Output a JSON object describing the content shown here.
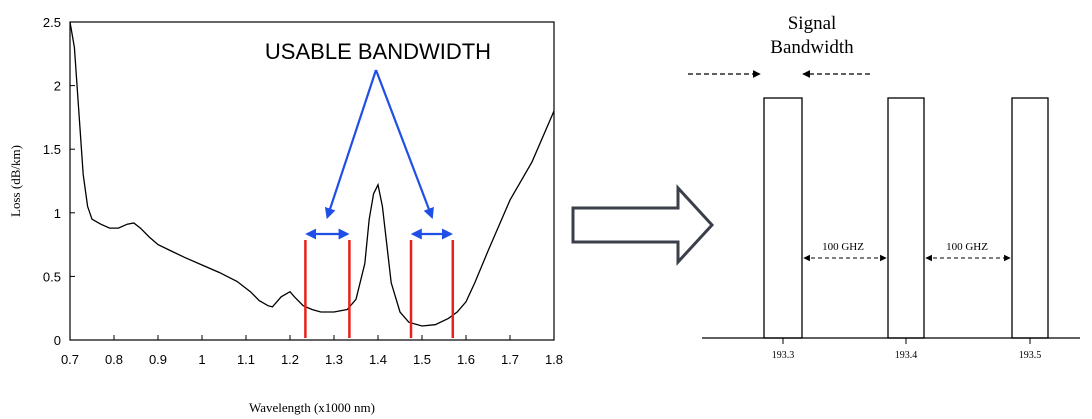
{
  "chart_data": [
    {
      "type": "line",
      "title": "",
      "xlabel": "Wavelength (x1000 nm)",
      "ylabel": "Loss (dB/km)",
      "xlim": [
        0.7,
        1.8
      ],
      "ylim": [
        0,
        2.5
      ],
      "x_ticks": [
        "0.7",
        "0.8",
        "0.9",
        "1",
        "1.1",
        "1.2",
        "1.3",
        "1.4",
        "1.5",
        "1.6",
        "1.7",
        "1.8"
      ],
      "y_ticks": [
        "0",
        "0.5",
        "1",
        "1.5",
        "2",
        "2.5"
      ],
      "grid": false,
      "series": [
        {
          "x": [
            0.7,
            0.71,
            0.72,
            0.73,
            0.74,
            0.75,
            0.77,
            0.79,
            0.81,
            0.83,
            0.845,
            0.86,
            0.88,
            0.9,
            0.93,
            0.96,
            1.0,
            1.04,
            1.08,
            1.11,
            1.13,
            1.15,
            1.16,
            1.18,
            1.2,
            1.21,
            1.23,
            1.25,
            1.27,
            1.3,
            1.33,
            1.35,
            1.37,
            1.38,
            1.39,
            1.4,
            1.41,
            1.42,
            1.43,
            1.45,
            1.47,
            1.5,
            1.53,
            1.56,
            1.58,
            1.6,
            1.62,
            1.65,
            1.7,
            1.75,
            1.8
          ],
          "y": [
            2.5,
            2.3,
            1.8,
            1.3,
            1.05,
            0.95,
            0.91,
            0.88,
            0.88,
            0.91,
            0.92,
            0.88,
            0.81,
            0.75,
            0.7,
            0.65,
            0.59,
            0.53,
            0.46,
            0.38,
            0.31,
            0.27,
            0.26,
            0.34,
            0.38,
            0.34,
            0.27,
            0.24,
            0.22,
            0.22,
            0.24,
            0.32,
            0.6,
            0.95,
            1.15,
            1.22,
            1.05,
            0.75,
            0.45,
            0.22,
            0.14,
            0.11,
            0.12,
            0.17,
            0.22,
            0.3,
            0.45,
            0.7,
            1.1,
            1.4,
            1.8
          ]
        }
      ],
      "annotations": {
        "label": "USABLE BANDWIDTH",
        "red_lines_x": [
          1.235,
          1.335,
          1.475,
          1.57
        ],
        "bands": [
          [
            1.235,
            1.335
          ],
          [
            1.475,
            1.57
          ]
        ]
      }
    },
    {
      "type": "diagram",
      "title": "Signal Bandwidth",
      "title_line1": "Signal",
      "title_line2": "Bandwidth",
      "channels": [
        "193.3",
        "193.4",
        "193.5"
      ],
      "spacing_label": "100  GHZ",
      "spacing_label_2": "100  GHZ"
    }
  ],
  "colors": {
    "curve": "#000000",
    "red_lines": "#e8221a",
    "blue_arrows": "#1f4fe6",
    "outline_arrow": "#3a3f4a"
  }
}
